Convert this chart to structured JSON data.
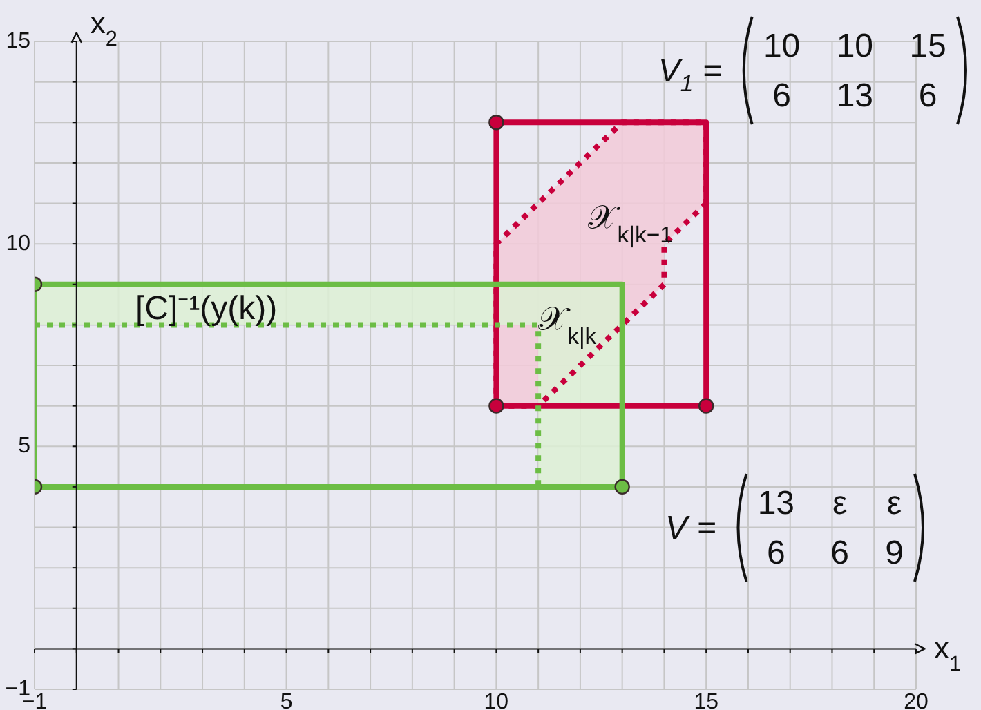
{
  "chart_data": {
    "type": "line",
    "xlabel": "x$_{1}$",
    "ylabel": "x$_{2}$",
    "xlim": [
      -1,
      20
    ],
    "ylim": [
      -1,
      15
    ],
    "xticks": [
      {
        "value": -1,
        "label": "−1"
      },
      {
        "value": 0,
        "label": null
      },
      {
        "value": 1,
        "label": null
      },
      {
        "value": 2,
        "label": null
      },
      {
        "value": 3,
        "label": null
      },
      {
        "value": 4,
        "label": null
      },
      5,
      {
        "value": 6,
        "label": null
      },
      {
        "value": 7,
        "label": null
      },
      {
        "value": 8,
        "label": null
      },
      {
        "value": 9,
        "label": null
      },
      10,
      {
        "value": 11,
        "label": null
      },
      {
        "value": 12,
        "label": null
      },
      {
        "value": 13,
        "label": null
      },
      {
        "value": 14,
        "label": null
      },
      15,
      {
        "value": 16,
        "label": null
      },
      {
        "value": 17,
        "label": null
      },
      {
        "value": 18,
        "label": null
      },
      {
        "value": 19,
        "label": null
      },
      20
    ],
    "yticks": [
      {
        "value": -1,
        "label": "−1"
      },
      {
        "value": 0,
        "label": null
      },
      {
        "value": 1,
        "label": null
      },
      {
        "value": 2,
        "label": null
      },
      {
        "value": 3,
        "label": null
      },
      {
        "value": 4,
        "label": null
      },
      5,
      {
        "value": 6,
        "label": null
      },
      {
        "value": 7,
        "label": null
      },
      {
        "value": 8,
        "label": null
      },
      {
        "value": 9,
        "label": null
      },
      10,
      {
        "value": 11,
        "label": null
      },
      {
        "value": 12,
        "label": null
      },
      {
        "value": 13,
        "label": null
      },
      {
        "value": 14,
        "label": null
      },
      15
    ],
    "grid": true,
    "annotations": [
      "V$_{1}$ =\n10 10 15\n6 13 6",
      "V =\n13 ε ε\n6 6 9"
    ],
    "series": [
      {
        "color": "#f2cad8",
        "x": [
          10,
          11,
          13,
          14,
          14,
          15
        ],
        "values": [
          null,
          null,
          null,
          null,
          null,
          null
        ],
        "lower": [
          6,
          6,
          8,
          9,
          10,
          11
        ],
        "upper": [
          10,
          11,
          13,
          13,
          13,
          13
        ]
      },
      {
        "color": "#ddf0d5",
        "x": [
          -1,
          11,
          11,
          13
        ],
        "values": [
          null,
          null,
          null,
          null
        ],
        "lower": [
          8,
          8,
          4,
          4
        ],
        "upper": [
          9,
          9,
          9,
          9
        ]
      },
      {
        "color": "#c8003c",
        "line_style": "dotted",
        "x": [
          10,
          10,
          13,
          15,
          15
        ],
        "values": [
          6,
          10,
          13,
          13,
          11
        ]
      },
      {
        "name": "𝒳$_{k|k−1}$",
        "color": "#c8003c",
        "line_style": "dotted",
        "x": [
          10,
          11,
          14,
          14,
          15
        ],
        "values": [
          6,
          6,
          9,
          10,
          11
        ]
      },
      {
        "color": "#c8003c",
        "x": [
          10,
          10,
          15,
          15
        ],
        "values": [
          6,
          13,
          13,
          6
        ]
      },
      {
        "color": "#c8003c",
        "x": [
          10,
          15
        ],
        "values": [
          6,
          6
        ]
      },
      {
        "name": "𝒳$_{k|k}$",
        "color": "#6cbd45",
        "line_style": "dotted",
        "x": [
          -1,
          11,
          11
        ],
        "values": [
          8,
          8,
          4
        ]
      },
      {
        "name": "[C]⁻¹(y(k))",
        "color": "#6cbd45",
        "x": [
          -1,
          -1,
          13,
          13
        ],
        "values": [
          4,
          9,
          9,
          4
        ]
      },
      {
        "color": "#6cbd45",
        "x": [
          -1,
          13
        ],
        "values": [
          4,
          4
        ]
      },
      {
        "type": "scatter",
        "color": "#c8003c",
        "marker": "circle",
        "x": [
          10,
          10,
          15
        ],
        "values": [
          13,
          6,
          6
        ]
      },
      {
        "type": "scatter",
        "color": "#6cbd45",
        "marker": "circle",
        "x": [
          -1,
          -1,
          13
        ],
        "values": [
          9,
          4,
          4
        ]
      }
    ]
  }
}
